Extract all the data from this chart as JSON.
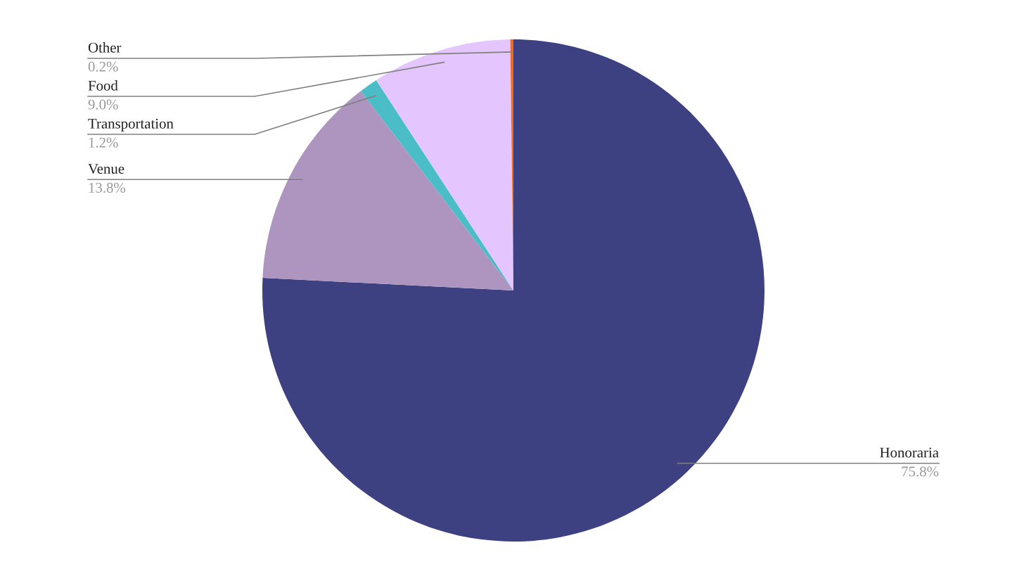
{
  "chart_data": {
    "type": "pie",
    "categories": [
      "Honoraria",
      "Venue",
      "Transportation",
      "Food",
      "Other"
    ],
    "values": [
      75.8,
      13.8,
      1.2,
      9.0,
      0.2
    ],
    "value_labels": [
      "75.8%",
      "13.8%",
      "1.2%",
      "9.0%",
      "0.2%"
    ],
    "colors": [
      "#3d4182",
      "#ad95bf",
      "#4abdc7",
      "#e4c5fe",
      "#f06d20"
    ]
  }
}
